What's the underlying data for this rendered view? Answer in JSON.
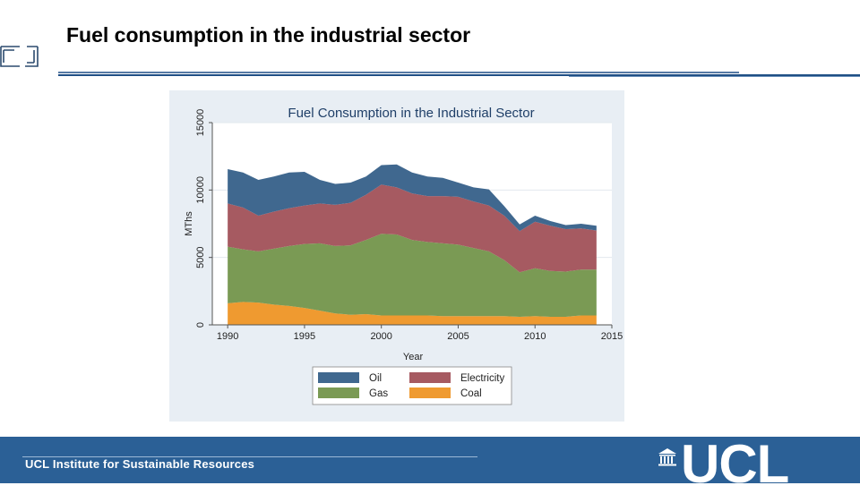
{
  "slide": {
    "title": "Fuel consumption in the industrial sector"
  },
  "footer": {
    "institute": "UCL Institute for Sustainable Resources",
    "logo_text": "UCL"
  },
  "colors": {
    "oil": "#40688f",
    "electricity": "#a65a61",
    "gas": "#7a9a54",
    "coal": "#ef9a30",
    "plot_bg": "#ffffff",
    "panel_bg": "#e8eef4",
    "footer_bg": "#2b6096"
  },
  "chart_data": {
    "type": "area",
    "stacked": true,
    "title": "Fuel Consumption in the Industrial Sector",
    "xlabel": "Year",
    "ylabel": "MThs",
    "xlim": [
      1989,
      2015
    ],
    "ylim": [
      0,
      15000
    ],
    "xticks": [
      1990,
      1995,
      2000,
      2005,
      2010,
      2015
    ],
    "yticks": [
      0,
      5000,
      10000,
      15000
    ],
    "grid": true,
    "legend_position": "bottom",
    "x": [
      1990,
      1991,
      1992,
      1993,
      1994,
      1995,
      1996,
      1997,
      1998,
      1999,
      2000,
      2001,
      2002,
      2003,
      2004,
      2005,
      2006,
      2007,
      2008,
      2009,
      2010,
      2011,
      2012,
      2013,
      2014
    ],
    "series": [
      {
        "name": "Coal",
        "color_key": "coal",
        "values": [
          1600,
          1700,
          1650,
          1500,
          1400,
          1250,
          1050,
          850,
          750,
          800,
          700,
          700,
          700,
          700,
          650,
          650,
          650,
          650,
          650,
          600,
          650,
          600,
          600,
          700,
          700
        ]
      },
      {
        "name": "Gas",
        "color_key": "gas",
        "values": [
          4200,
          3900,
          3800,
          4150,
          4450,
          4750,
          5000,
          5000,
          5150,
          5500,
          6050,
          6000,
          5600,
          5450,
          5400,
          5300,
          5050,
          4800,
          4150,
          3300,
          3550,
          3400,
          3350,
          3400,
          3400
        ]
      },
      {
        "name": "Electricity",
        "color_key": "electricity",
        "values": [
          3200,
          3100,
          2650,
          2750,
          2800,
          2850,
          2950,
          3050,
          3150,
          3350,
          3650,
          3500,
          3450,
          3400,
          3500,
          3550,
          3450,
          3400,
          3300,
          3050,
          3450,
          3350,
          3150,
          3050,
          2900
        ]
      },
      {
        "name": "Oil",
        "color_key": "oil",
        "values": [
          2550,
          2600,
          2650,
          2600,
          2650,
          2500,
          1750,
          1550,
          1500,
          1350,
          1450,
          1700,
          1550,
          1450,
          1350,
          1050,
          1050,
          1200,
          700,
          500,
          450,
          350,
          300,
          350,
          350
        ]
      }
    ],
    "legend": [
      "Oil",
      "Electricity",
      "Gas",
      "Coal"
    ]
  }
}
